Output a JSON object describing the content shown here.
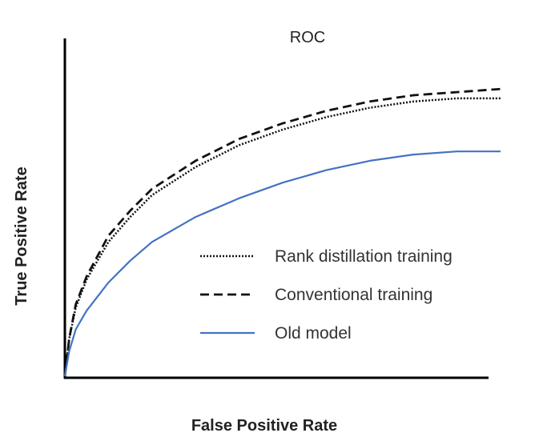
{
  "chart_data": {
    "type": "line",
    "title": "ROC",
    "xlabel": "False Positive Rate",
    "ylabel": "True Positive Rate",
    "xlim": [
      0,
      1
    ],
    "ylim": [
      0,
      1
    ],
    "grid": false,
    "legend_position": "bottom-right",
    "x": [
      0,
      0.01,
      0.025,
      0.05,
      0.1,
      0.15,
      0.2,
      0.3,
      0.4,
      0.5,
      0.6,
      0.7,
      0.8,
      0.9,
      1.0
    ],
    "series": [
      {
        "name": "Rank distillation training",
        "style": "dotted",
        "color": "#111111",
        "values": [
          0.0,
          0.12,
          0.22,
          0.31,
          0.43,
          0.51,
          0.58,
          0.67,
          0.74,
          0.79,
          0.83,
          0.86,
          0.88,
          0.89,
          0.89
        ]
      },
      {
        "name": "Conventional training",
        "style": "dashed",
        "color": "#111111",
        "values": [
          0.0,
          0.12,
          0.23,
          0.32,
          0.45,
          0.53,
          0.6,
          0.69,
          0.76,
          0.81,
          0.85,
          0.88,
          0.9,
          0.91,
          0.92
        ]
      },
      {
        "name": "Old model",
        "style": "solid",
        "color": "#4472c4",
        "values": [
          0.0,
          0.08,
          0.15,
          0.21,
          0.3,
          0.37,
          0.43,
          0.51,
          0.57,
          0.62,
          0.66,
          0.69,
          0.71,
          0.72,
          0.72
        ]
      }
    ]
  }
}
